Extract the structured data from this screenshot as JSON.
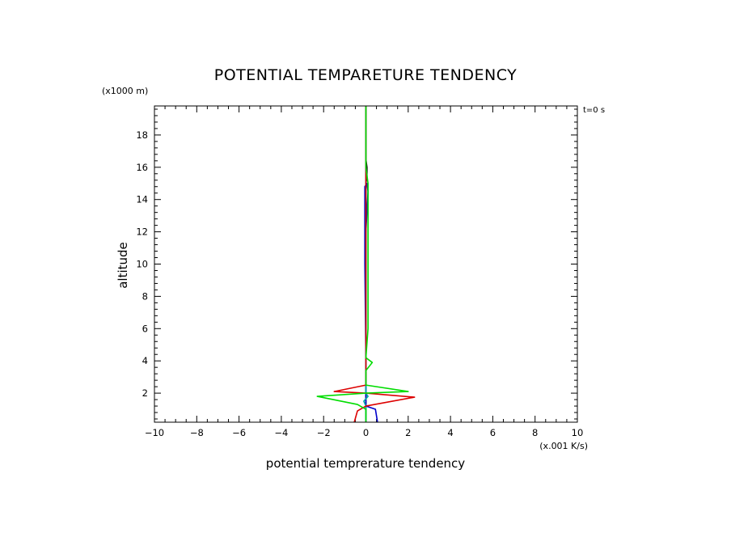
{
  "chart_data": {
    "type": "line",
    "title": "POTENTIAL TEMPARETURE TENDENCY",
    "xlabel": "potential temprerature tendency",
    "ylabel": "altitude",
    "x_unit": "(x.001 K/s)",
    "y_unit": "(x1000 m)",
    "time_label": "t=0 s",
    "xlim": [
      -10,
      10
    ],
    "ylim": [
      0.2,
      19.8
    ],
    "x_ticks": [
      -10,
      -8,
      -6,
      -4,
      -2,
      0,
      2,
      4,
      6,
      8,
      10
    ],
    "y_ticks": [
      2,
      4,
      6,
      8,
      10,
      12,
      14,
      16,
      18
    ],
    "grid": false,
    "series": [
      {
        "color": "#000000",
        "points": [
          [
            0.0,
            0.2
          ],
          [
            0.0,
            1.0
          ],
          [
            0.0,
            2.0
          ],
          [
            0.0,
            4.0
          ],
          [
            0.0,
            10.0
          ],
          [
            0.0,
            15.0
          ],
          [
            0.05,
            15.4
          ],
          [
            0.05,
            16.0
          ],
          [
            0.0,
            16.5
          ],
          [
            0.0,
            19.8
          ]
        ]
      },
      {
        "color": "#0000cc",
        "points": [
          [
            0.55,
            0.2
          ],
          [
            0.45,
            1.0
          ],
          [
            0.0,
            1.2
          ],
          [
            0.0,
            2.5
          ],
          [
            0.0,
            4.0
          ],
          [
            -0.05,
            10.0
          ],
          [
            -0.05,
            14.8
          ],
          [
            0.05,
            15.0
          ],
          [
            0.1,
            14.5
          ],
          [
            0.0,
            12.0
          ],
          [
            0.0,
            19.8
          ]
        ]
      },
      {
        "color": "#00aaaa",
        "points": [
          [
            0.0,
            0.2
          ],
          [
            0.0,
            1.2
          ],
          [
            -0.1,
            1.5
          ],
          [
            0.1,
            1.8
          ],
          [
            0.0,
            2.0
          ],
          [
            0.0,
            19.8
          ]
        ]
      },
      {
        "color": "#dd0000",
        "points": [
          [
            -0.55,
            0.2
          ],
          [
            -0.4,
            0.9
          ],
          [
            0.0,
            1.2
          ],
          [
            2.3,
            1.75
          ],
          [
            0.0,
            2.0
          ],
          [
            -1.5,
            2.1
          ],
          [
            0.0,
            2.5
          ],
          [
            0.0,
            19.8
          ]
        ]
      },
      {
        "color": "#00dd00",
        "points": [
          [
            0.0,
            0.2
          ],
          [
            0.0,
            1.0
          ],
          [
            -0.4,
            1.3
          ],
          [
            -2.3,
            1.8
          ],
          [
            0.0,
            2.0
          ],
          [
            2.0,
            2.1
          ],
          [
            0.0,
            2.5
          ],
          [
            0.0,
            3.4
          ],
          [
            0.3,
            3.9
          ],
          [
            0.0,
            4.2
          ],
          [
            0.1,
            6.0
          ],
          [
            0.1,
            10.0
          ],
          [
            0.1,
            15.0
          ],
          [
            0.0,
            16.0
          ],
          [
            0.0,
            19.8
          ]
        ]
      }
    ]
  }
}
